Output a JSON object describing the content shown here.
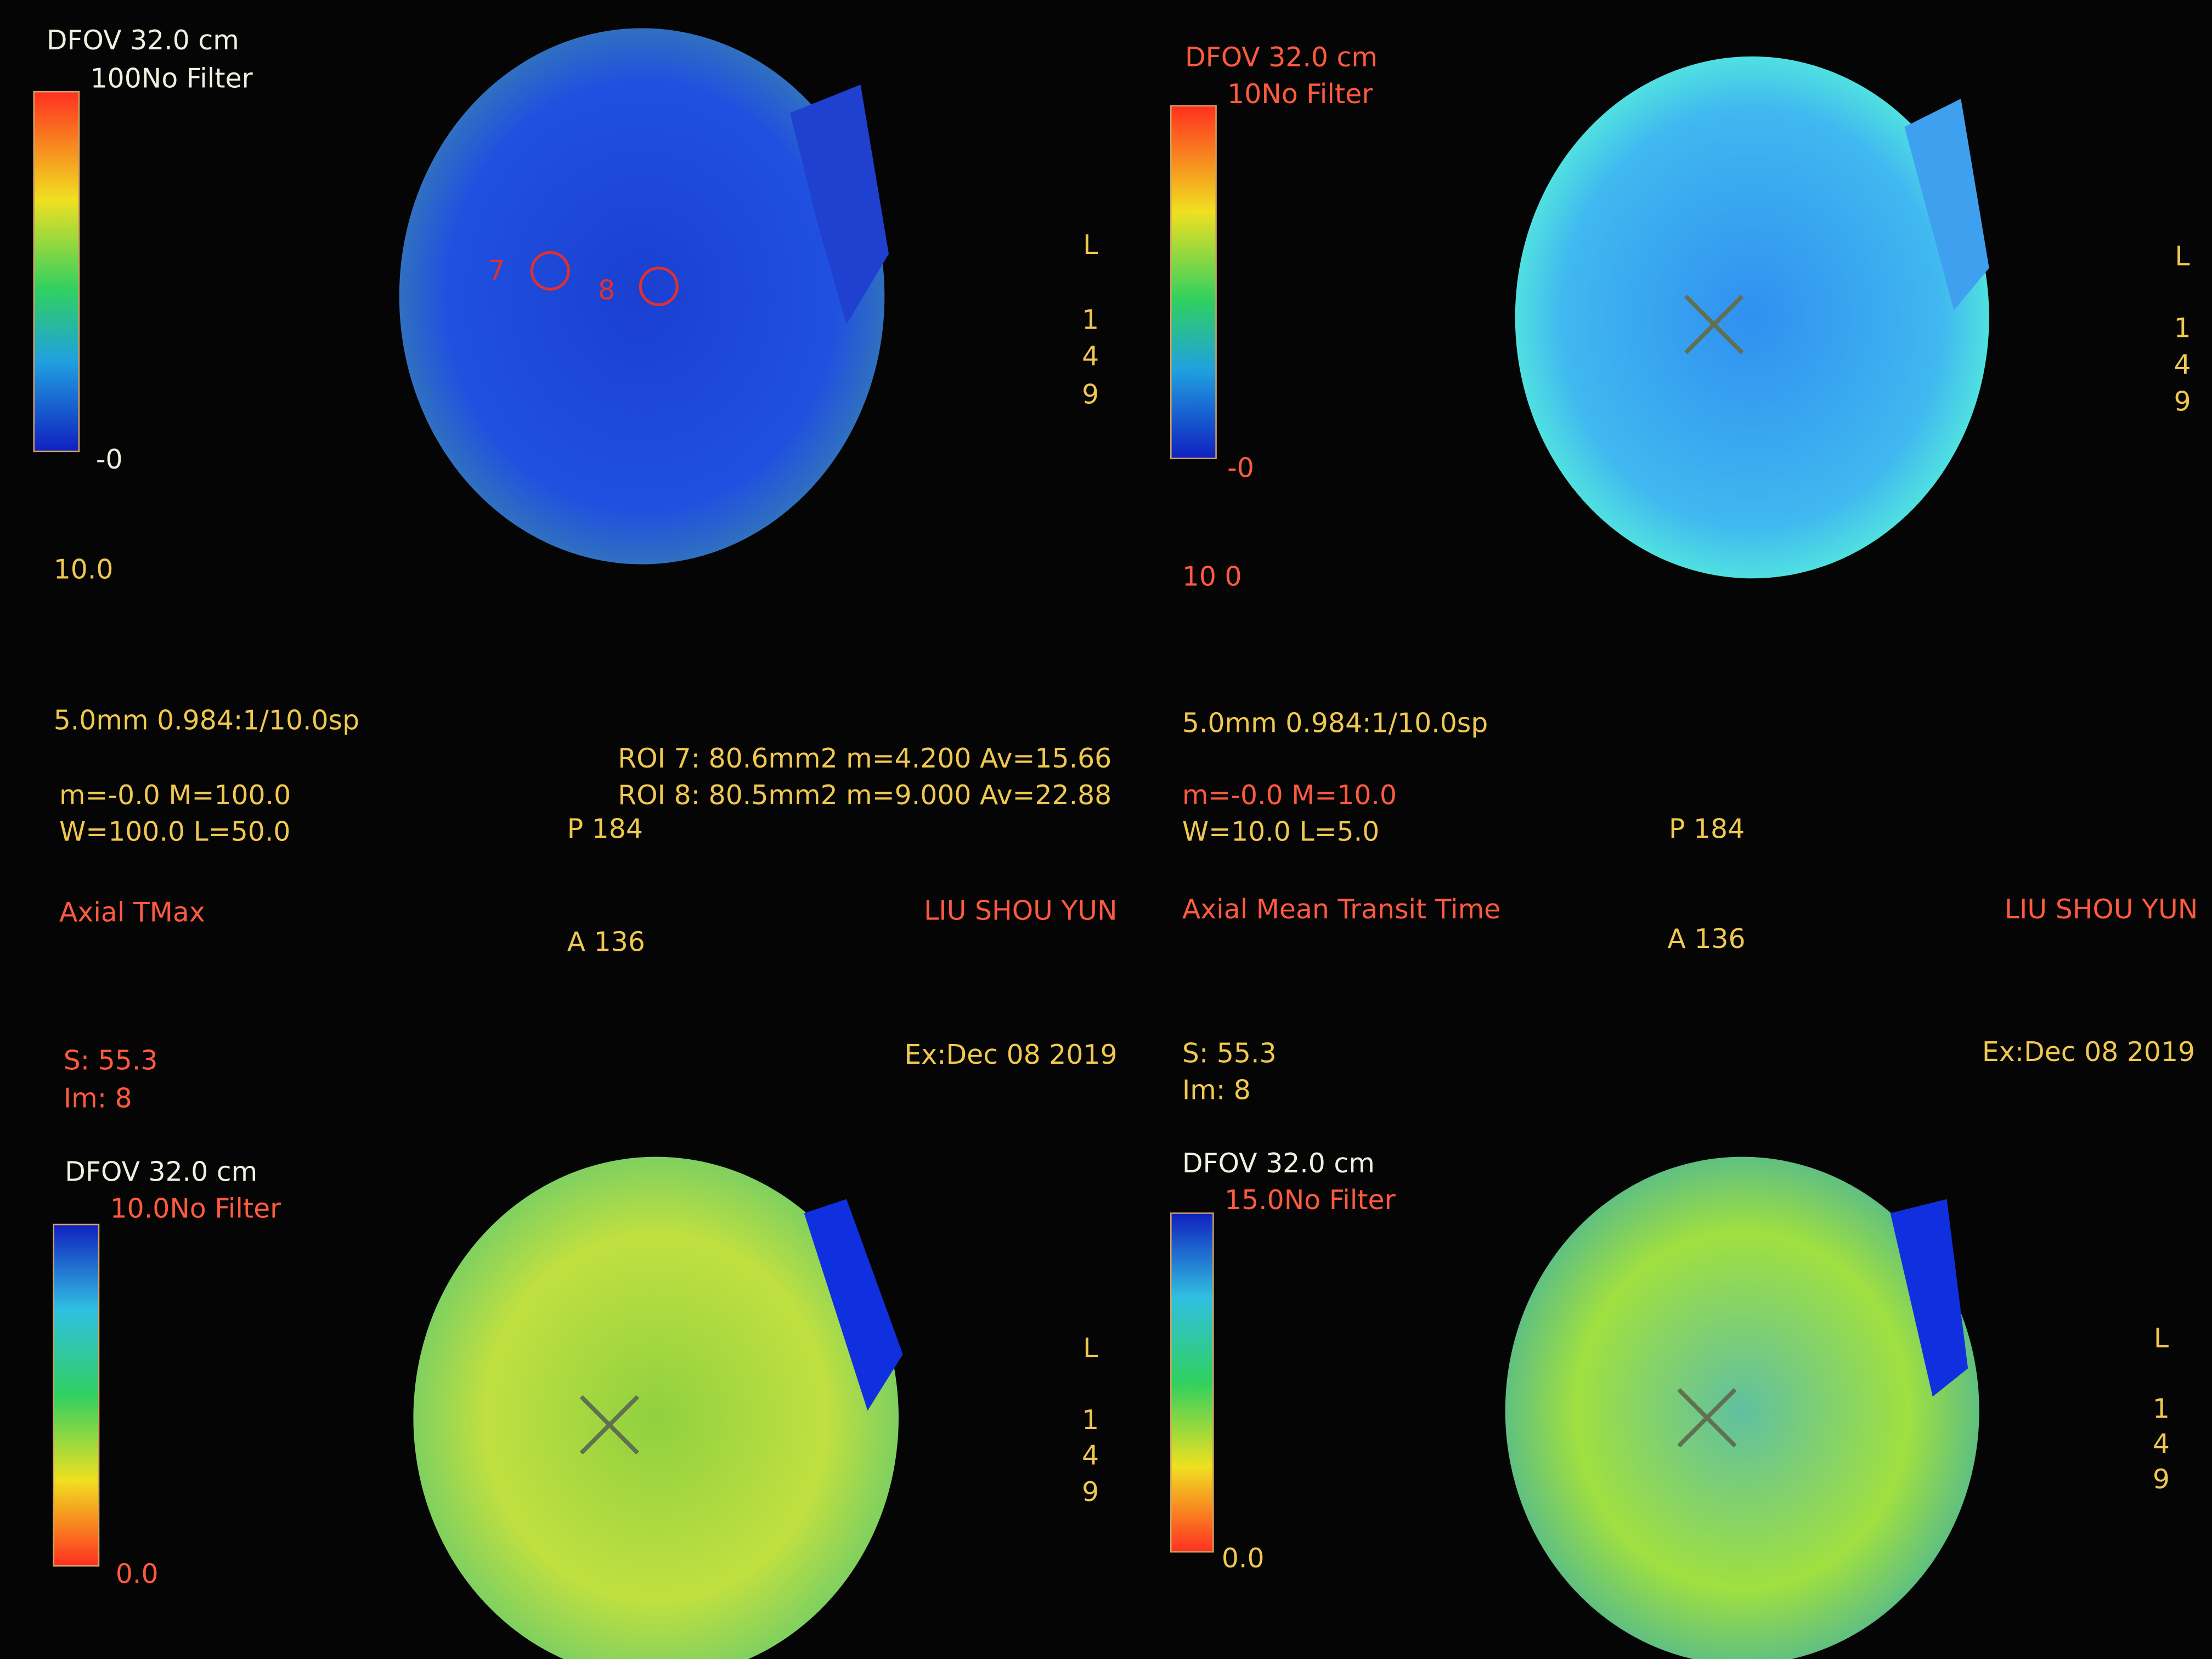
{
  "panels": [
    {
      "dfov": "DFOV 32.0 cm",
      "filter": "100No Filter",
      "scale_min": "-0",
      "scale_value": "10.0",
      "slice": "5.0mm 0.984:1/10.0sp",
      "range": "m=-0.0 M=100.0",
      "window": "W=100.0 L=50.0",
      "roi_stats": [
        "ROI 7: 80.6mm2 m=4.200  Av=15.66",
        "ROI 8: 80.5mm2 m=9.000  Av=22.88"
      ],
      "roi_labels": [
        "7",
        "8"
      ],
      "position_p": "P 184",
      "position_a": "A 136",
      "series": "Axial TMax",
      "patient": "LIU SHOU YUN",
      "location": "S: 55.3",
      "image": "Im: 8",
      "exam_date": "Ex:Dec 08 2019",
      "orientation": [
        "L",
        "1",
        "4",
        "9"
      ]
    },
    {
      "dfov": "DFOV 32.0 cm",
      "filter": "10No Filter",
      "scale_min": "-0",
      "scale_value": "10 0",
      "slice": "5.0mm 0.984:1/10.0sp",
      "range": "m=-0.0 M=10.0",
      "window": "W=10.0 L=5.0",
      "position_p": "P 184",
      "position_a": "A 136",
      "series": "Axial Mean Transit Time",
      "patient": "LIU SHOU YUN",
      "location": "S: 55.3",
      "image": "Im: 8",
      "exam_date": "Ex:Dec 08 2019",
      "orientation": [
        "L",
        "1",
        "4",
        "9"
      ]
    },
    {
      "dfov": "DFOV 32.0 cm",
      "filter": "10.0No Filter",
      "scale_min": "0.0",
      "orientation": [
        "L",
        "1",
        "4",
        "9"
      ]
    },
    {
      "dfov": "DFOV 32.0 cm",
      "filter": "15.0No Filter",
      "scale_min": "0.0",
      "orientation": [
        "L",
        "1",
        "4",
        "9"
      ]
    }
  ]
}
